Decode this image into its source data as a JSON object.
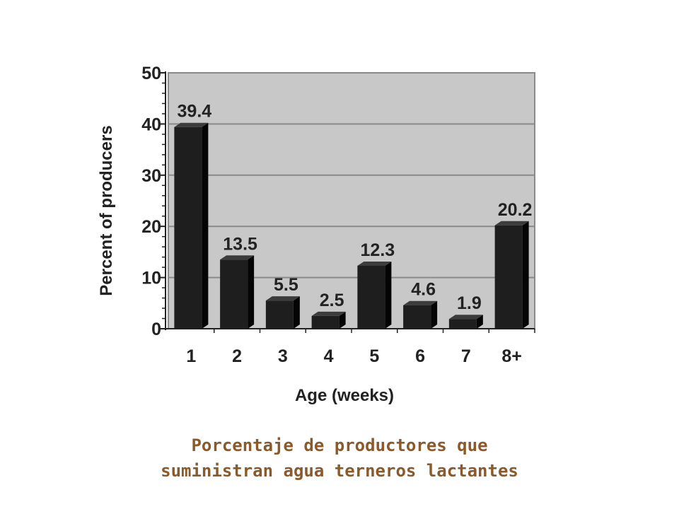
{
  "chart_data": {
    "type": "bar",
    "categories": [
      "1",
      "2",
      "3",
      "4",
      "5",
      "6",
      "7",
      "8+"
    ],
    "values": [
      39.4,
      13.5,
      5.5,
      2.5,
      12.3,
      4.6,
      1.9,
      20.2
    ],
    "data_labels": [
      "39.4",
      "13.5",
      "5.5",
      "2.5",
      "12.3",
      "4.6",
      "1.9",
      "20.2"
    ],
    "title": "",
    "xlabel": "Age (weeks)",
    "ylabel": "Percent of producers",
    "ylim": [
      0,
      50
    ],
    "yticks": [
      "0",
      "10",
      "20",
      "30",
      "40",
      "50"
    ],
    "grid": true,
    "style": {
      "bar_color": "#1e1e1e",
      "bar_side_color": "#050505",
      "bar_top_color": "#3c3c3c",
      "plot_background": "#c8c8c8",
      "gridline_color": "#8a8a8a"
    }
  },
  "caption": {
    "line1": "Porcentaje de productores que",
    "line2": "suministran agua terneros lactantes",
    "color": "#8a5a2b"
  }
}
